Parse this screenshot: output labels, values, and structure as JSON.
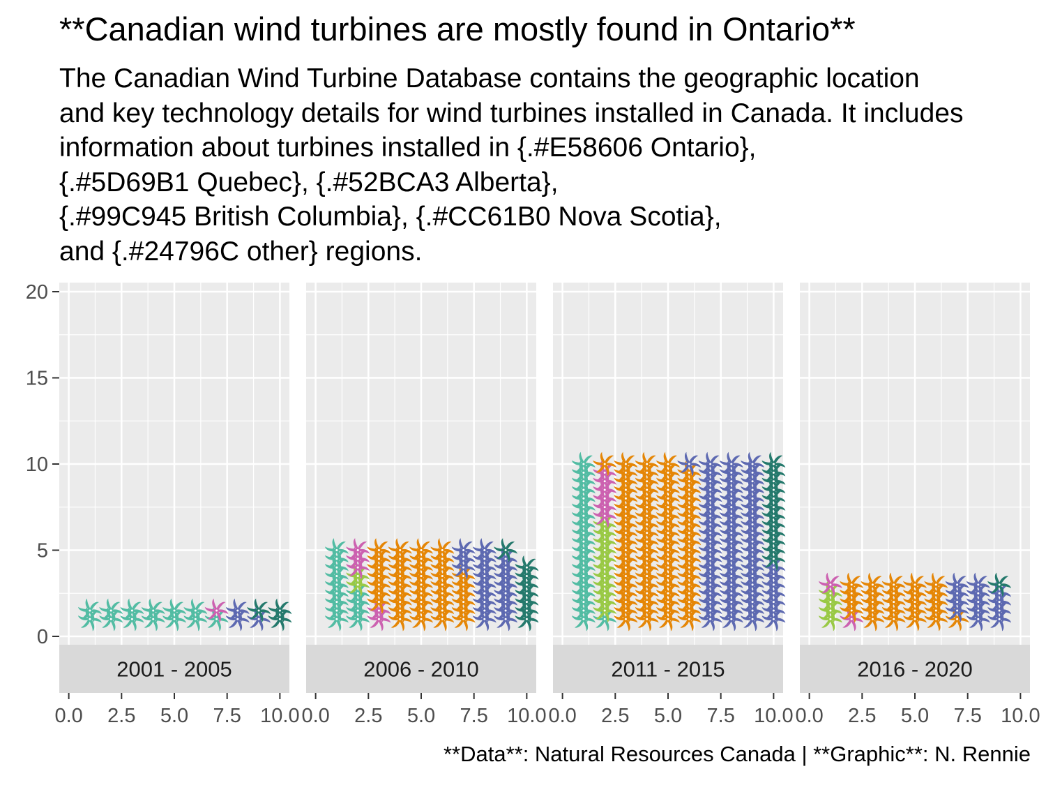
{
  "title": "**Canadian wind turbines are mostly found in Ontario**",
  "subtitle_lines": [
    "The Canadian Wind Turbine Database contains the geographic location",
    "and key technology details for wind turbines installed in Canada. It includes",
    "information about turbines installed in {.#E58606 Ontario},",
    "{.#5D69B1 Quebec}, {.#52BCA3 Alberta},",
    "{.#99C945 British Columbia}, {.#CC61B0 Nova Scotia},",
    "and {.#24796C other} regions."
  ],
  "caption": "**Data**: Natural Resources Canada | **Graphic**: N. Rennie",
  "chart_data": {
    "type": "waffle",
    "facet_var": "period",
    "xlim": [
      0,
      10
    ],
    "ylim": [
      0,
      20
    ],
    "x_ticks": [
      "0.0",
      "2.5",
      "5.0",
      "7.5",
      "10.0"
    ],
    "y_ticks": [
      "0",
      "5",
      "10",
      "15",
      "20"
    ],
    "grid": true,
    "colors": {
      "Ontario": "#E58606",
      "Quebec": "#5D69B1",
      "Alberta": "#52BCA3",
      "British Columbia": "#99C945",
      "Nova Scotia": "#CC61B0",
      "other": "#24796C"
    },
    "facets": [
      {
        "label": "2001 - 2005",
        "units": [
          [
            "Alberta",
            13
          ],
          [
            "Nova Scotia",
            1
          ],
          [
            "Quebec",
            3
          ],
          [
            "other",
            3
          ]
        ]
      },
      {
        "label": "2006 - 2010",
        "units": [
          [
            "Alberta",
            13
          ],
          [
            "British Columbia",
            2
          ],
          [
            "Nova Scotia",
            5
          ],
          [
            "Ontario",
            40
          ],
          [
            "Quebec",
            20
          ],
          [
            "other",
            8
          ]
        ]
      },
      {
        "label": "2011 - 2015",
        "units": [
          [
            "Alberta",
            20
          ],
          [
            "British Columbia",
            11
          ],
          [
            "Nova Scotia",
            6
          ],
          [
            "Ontario",
            76
          ],
          [
            "Quebec",
            65
          ],
          [
            "other",
            12
          ]
        ]
      },
      {
        "label": "2016 - 2020",
        "units": [
          [
            "British Columbia",
            4
          ],
          [
            "Nova Scotia",
            2
          ],
          [
            "Ontario",
            25
          ],
          [
            "Quebec",
            13
          ],
          [
            "other",
            1
          ]
        ]
      }
    ]
  }
}
